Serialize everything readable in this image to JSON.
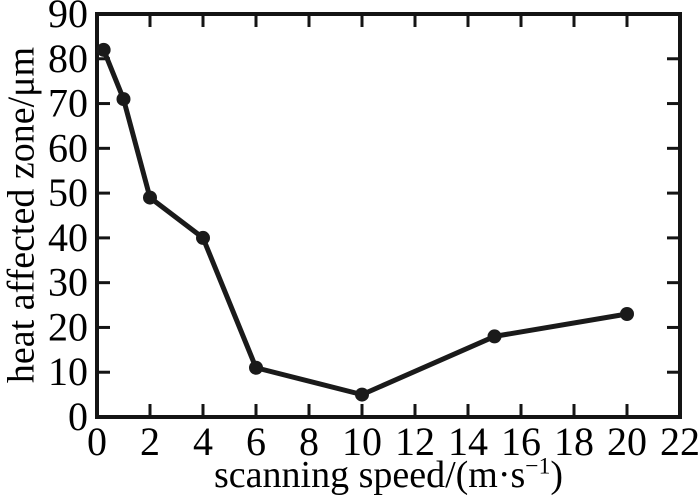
{
  "figure": {
    "background": "#ffffff",
    "frame_color": "#141414",
    "line_color": "#1a1a1a",
    "marker_color": "#1a1a1a",
    "text_color": "#000000"
  },
  "chart_data": {
    "type": "line",
    "title": "",
    "series_name": "heat affected zone",
    "xlabel": "scanning speed/(m·s⁻¹)",
    "xlabel_parts": {
      "base": "scanning speed/(m·s",
      "sup": "−1",
      "close": ")"
    },
    "ylabel": "heat affected zone/μm",
    "x": [
      0.25,
      1,
      2,
      4,
      6,
      10,
      15,
      20
    ],
    "y": [
      82,
      71,
      49,
      40,
      11,
      5,
      18,
      23
    ],
    "xlim": [
      0,
      22
    ],
    "ylim": [
      0,
      90
    ],
    "x_ticks": [
      0,
      2,
      4,
      6,
      8,
      10,
      12,
      14,
      16,
      18,
      20,
      22
    ],
    "y_ticks": [
      0,
      10,
      20,
      30,
      40,
      50,
      60,
      70,
      80,
      90
    ],
    "grid": false,
    "legend": "none",
    "marker": "circle"
  }
}
